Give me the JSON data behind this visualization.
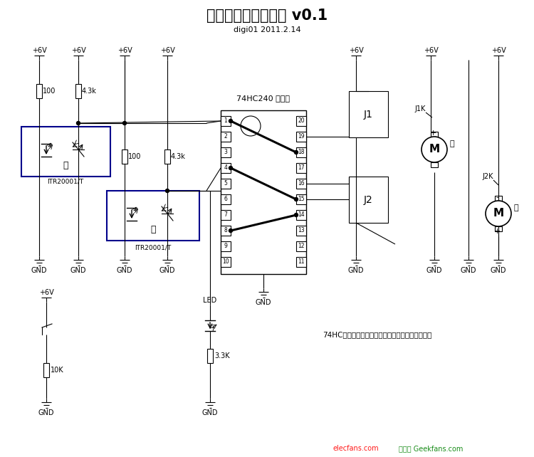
{
  "title": "模拟计算机循线小车 v0.1",
  "subtitle": "digi01 2011.2.14",
  "bg_color": "#ffffff",
  "line_color": "#000000",
  "title_fontsize": 16,
  "subtitle_fontsize": 8,
  "watermark1": "elecfans.com",
  "watermark2": "极客盆 Geekfans.com",
  "ic_label": "74HC240 顶视图",
  "note": "74HC上面的用粗黑线标示的管脚需要用跳线连接。"
}
